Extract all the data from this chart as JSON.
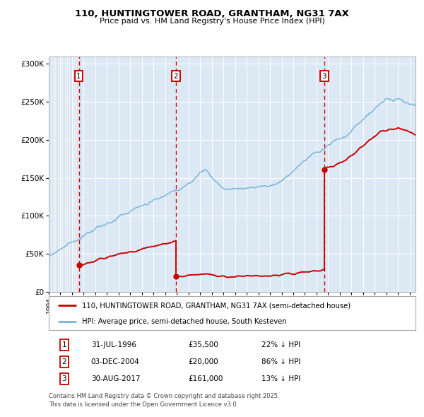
{
  "title_line1": "110, HUNTINGTOWER ROAD, GRANTHAM, NG31 7AX",
  "title_line2": "Price paid vs. HM Land Registry's House Price Index (HPI)",
  "background_color": "#dce9f5",
  "hpi_color": "#7ab4d8",
  "price_color": "#cc0000",
  "dashed_color": "#cc0000",
  "ylim": [
    0,
    310000
  ],
  "yticks": [
    0,
    50000,
    100000,
    150000,
    200000,
    250000,
    300000
  ],
  "ytick_labels": [
    "£0",
    "£50K",
    "£100K",
    "£150K",
    "£200K",
    "£250K",
    "£300K"
  ],
  "sales": [
    {
      "date": 1996.58,
      "price": 35500,
      "label": "1",
      "date_str": "31-JUL-1996",
      "price_str": "£35,500",
      "pct": "22% ↓ HPI"
    },
    {
      "date": 2004.92,
      "price": 20000,
      "label": "2",
      "date_str": "03-DEC-2004",
      "price_str": "£20,000",
      "pct": "86% ↓ HPI"
    },
    {
      "date": 2017.66,
      "price": 161000,
      "label": "3",
      "date_str": "30-AUG-2017",
      "price_str": "£161,000",
      "pct": "13% ↓ HPI"
    }
  ],
  "legend_line1": "110, HUNTINGTOWER ROAD, GRANTHAM, NG31 7AX (semi-detached house)",
  "legend_line2": "HPI: Average price, semi-detached house, South Kesteven",
  "footnote": "Contains HM Land Registry data © Crown copyright and database right 2025.\nThis data is licensed under the Open Government Licence v3.0."
}
